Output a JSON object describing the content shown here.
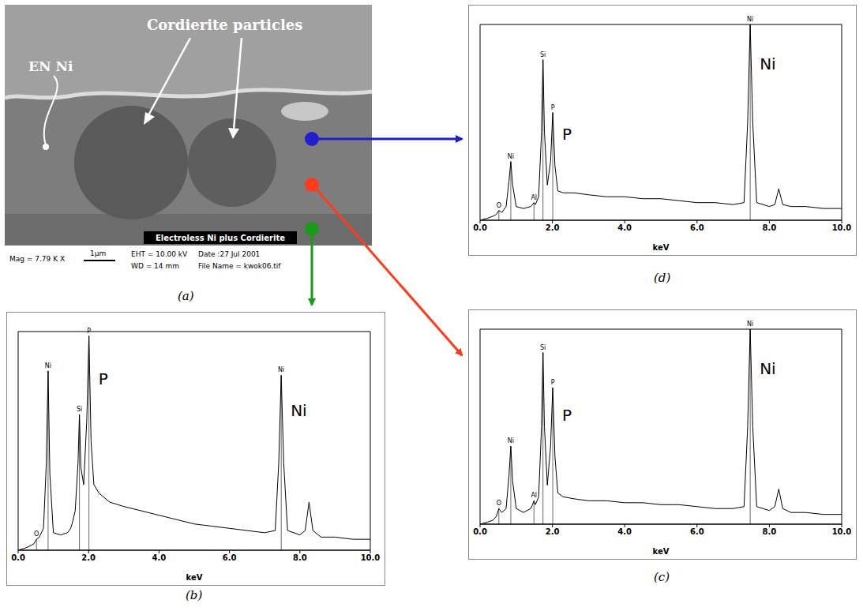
{
  "image": {
    "panel": "(a)",
    "labels": [
      "Cordierite particles",
      "EN Ni"
    ],
    "banner": "Electroless Ni plus Cordierite",
    "info": {
      "mag": "Mag = 7.79 K X",
      "scale": "1µm",
      "eht": "EHT = 10.00 kV",
      "wd": "WD = 14 mm",
      "date": "Date :27 Jul 2001",
      "file": "File Name = kwok06.tif"
    }
  },
  "chart_data": [
    {
      "type": "line",
      "panel": "(b)",
      "x_label": "keV",
      "color": "#000000",
      "tick_labels": "x",
      "xlim": [
        0,
        10
      ],
      "xticks": [
        {
          "value": 0,
          "label": "0.0"
        },
        {
          "value": 2,
          "label": "2.0"
        },
        {
          "value": 4,
          "label": "4.0"
        },
        {
          "value": 6,
          "label": "6.0"
        },
        {
          "value": 8,
          "label": "8.0"
        },
        {
          "value": 10,
          "label": "10.0"
        }
      ],
      "ylim": [
        0,
        100
      ],
      "x": [
        0.0,
        0.2,
        0.35,
        0.45,
        0.52,
        0.6,
        0.72,
        0.8,
        0.85,
        0.9,
        1.0,
        1.2,
        1.4,
        1.45,
        1.49,
        1.53,
        1.62,
        1.7,
        1.74,
        1.78,
        1.86,
        1.95,
        2.01,
        2.07,
        2.15,
        2.3,
        2.6,
        3.0,
        3.5,
        4.0,
        4.5,
        5.0,
        5.5,
        6.0,
        6.5,
        7.0,
        7.3,
        7.4,
        7.47,
        7.54,
        7.65,
        8.0,
        8.15,
        8.26,
        8.37,
        8.6,
        9.0,
        9.5,
        10.0
      ],
      "values": [
        0,
        1,
        2,
        3,
        5,
        6,
        10,
        40,
        82,
        35,
        8,
        7,
        8,
        9,
        10,
        12,
        18,
        40,
        62,
        38,
        30,
        60,
        98,
        50,
        30,
        26,
        22,
        20,
        18,
        16,
        14,
        12,
        11,
        10,
        9,
        8,
        9,
        40,
        80,
        40,
        9,
        7,
        9,
        22,
        9,
        6,
        6,
        5,
        5
      ],
      "peak_labels": [
        {
          "text": "O",
          "x": 0.52
        },
        {
          "text": "Ni",
          "x": 0.85
        },
        {
          "text": "Si",
          "x": 1.74
        },
        {
          "text": "P",
          "x": 2.01
        },
        {
          "text": "Ni",
          "x": 7.47
        }
      ],
      "annotations": [
        {
          "text": "P",
          "x": 2.01
        },
        {
          "text": "Ni",
          "x": 7.47
        }
      ]
    },
    {
      "type": "line",
      "panel": "(c)",
      "x_label": "keV",
      "color": "#000000",
      "tick_labels": "x",
      "xlim": [
        0,
        10
      ],
      "xticks": [
        {
          "value": 0,
          "label": "0.0"
        },
        {
          "value": 2,
          "label": "2.0"
        },
        {
          "value": 4,
          "label": "4.0"
        },
        {
          "value": 6,
          "label": "6.0"
        },
        {
          "value": 8,
          "label": "8.0"
        },
        {
          "value": 10,
          "label": "10.0"
        }
      ],
      "ylim": [
        0,
        100
      ],
      "x": [
        0.0,
        0.2,
        0.35,
        0.45,
        0.52,
        0.6,
        0.72,
        0.8,
        0.85,
        0.9,
        1.0,
        1.2,
        1.4,
        1.45,
        1.49,
        1.53,
        1.62,
        1.7,
        1.74,
        1.78,
        1.86,
        1.95,
        2.01,
        2.07,
        2.15,
        2.3,
        2.6,
        3.0,
        3.5,
        4.0,
        4.5,
        5.0,
        5.5,
        6.0,
        6.5,
        7.0,
        7.3,
        7.4,
        7.47,
        7.54,
        7.65,
        8.0,
        8.15,
        8.26,
        8.37,
        8.6,
        9.0,
        9.5,
        10.0
      ],
      "values": [
        0,
        1,
        2,
        4,
        8,
        6,
        8,
        25,
        40,
        22,
        8,
        6,
        8,
        10,
        12,
        10,
        14,
        50,
        88,
        50,
        20,
        40,
        70,
        35,
        16,
        14,
        13,
        12,
        12,
        11,
        11,
        10,
        10,
        9,
        8,
        8,
        9,
        50,
        100,
        50,
        9,
        7,
        9,
        18,
        8,
        6,
        6,
        5,
        5
      ],
      "peak_labels": [
        {
          "text": "O",
          "x": 0.52
        },
        {
          "text": "Ni",
          "x": 0.85
        },
        {
          "text": "Al",
          "x": 1.49
        },
        {
          "text": "Si",
          "x": 1.74
        },
        {
          "text": "P",
          "x": 2.01
        },
        {
          "text": "Ni",
          "x": 7.47
        }
      ],
      "annotations": [
        {
          "text": "P",
          "x": 2.01
        },
        {
          "text": "Ni",
          "x": 7.47
        }
      ]
    },
    {
      "type": "line",
      "panel": "(d)",
      "x_label": "keV",
      "color": "#000000",
      "tick_labels": "x",
      "xlim": [
        0,
        10
      ],
      "xticks": [
        {
          "value": 0,
          "label": "0.0"
        },
        {
          "value": 2,
          "label": "2.0"
        },
        {
          "value": 4,
          "label": "4.0"
        },
        {
          "value": 6,
          "label": "6.0"
        },
        {
          "value": 8,
          "label": "8.0"
        },
        {
          "value": 10,
          "label": "10.0"
        }
      ],
      "ylim": [
        0,
        100
      ],
      "x": [
        0.0,
        0.2,
        0.35,
        0.45,
        0.52,
        0.6,
        0.72,
        0.8,
        0.85,
        0.9,
        1.0,
        1.2,
        1.4,
        1.45,
        1.49,
        1.53,
        1.62,
        1.7,
        1.74,
        1.78,
        1.86,
        1.95,
        2.01,
        2.07,
        2.15,
        2.3,
        2.6,
        3.0,
        3.5,
        4.0,
        4.5,
        5.0,
        5.5,
        6.0,
        6.5,
        7.0,
        7.3,
        7.4,
        7.47,
        7.54,
        7.65,
        8.0,
        8.15,
        8.26,
        8.37,
        8.6,
        9.0,
        9.5,
        10.0
      ],
      "values": [
        0,
        1,
        2,
        3,
        5,
        4,
        7,
        20,
        30,
        18,
        7,
        6,
        7,
        8,
        9,
        8,
        12,
        45,
        82,
        45,
        18,
        30,
        55,
        28,
        15,
        14,
        14,
        13,
        12,
        12,
        11,
        11,
        10,
        9,
        9,
        8,
        9,
        50,
        100,
        50,
        9,
        7,
        8,
        16,
        8,
        7,
        7,
        6,
        6
      ],
      "peak_labels": [
        {
          "text": "O",
          "x": 0.52
        },
        {
          "text": "Ni",
          "x": 0.85
        },
        {
          "text": "Al",
          "x": 1.49
        },
        {
          "text": "Si",
          "x": 1.74
        },
        {
          "text": "P",
          "x": 2.01
        },
        {
          "text": "Ni",
          "x": 7.47
        }
      ],
      "annotations": [
        {
          "text": "P",
          "x": 2.01
        },
        {
          "text": "Ni",
          "x": 7.47
        }
      ]
    }
  ]
}
